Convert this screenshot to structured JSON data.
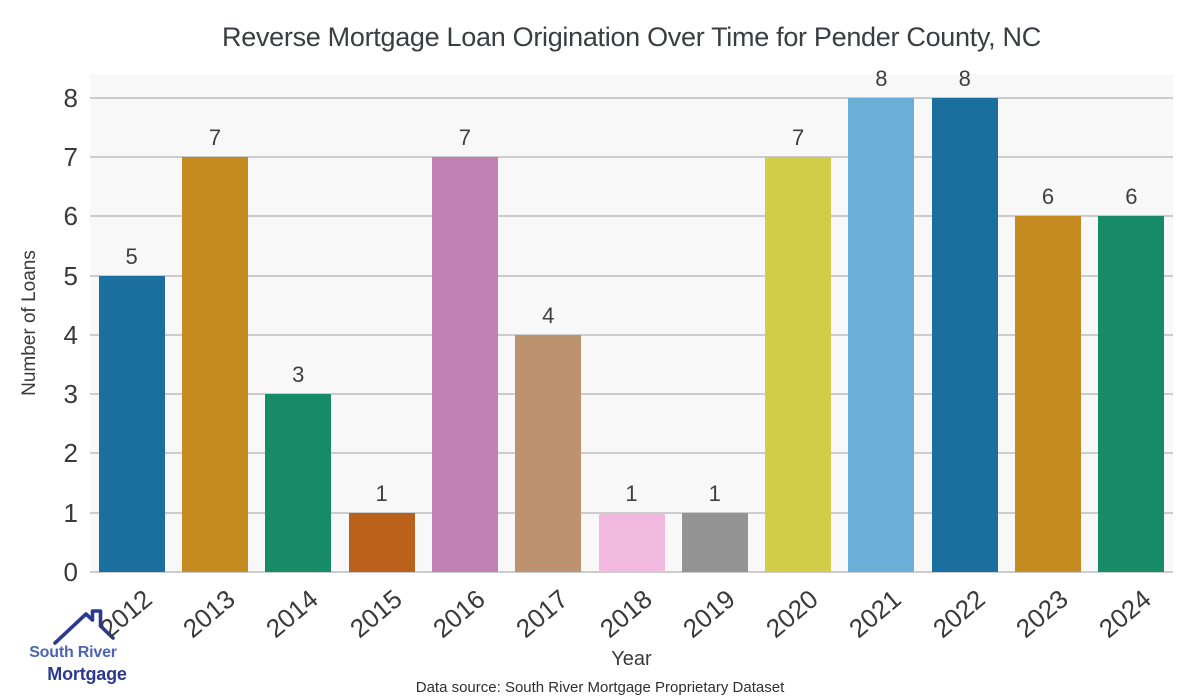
{
  "chart_data": {
    "type": "bar",
    "title": "Reverse Mortgage Loan Origination Over Time for Pender County, NC",
    "xlabel": "Year",
    "ylabel": "Number of Loans",
    "categories": [
      "2012",
      "2013",
      "2014",
      "2015",
      "2016",
      "2017",
      "2018",
      "2019",
      "2020",
      "2021",
      "2022",
      "2023",
      "2024"
    ],
    "values": [
      5,
      7,
      3,
      1,
      7,
      4,
      1,
      1,
      7,
      8,
      8,
      6,
      6
    ],
    "bar_colors": [
      "#1a6f9e",
      "#c58a20",
      "#178a68",
      "#ba611c",
      "#c281b5",
      "#bd926e",
      "#f2b9e0",
      "#949494",
      "#d3cc49",
      "#69afd7",
      "#1a6f9e",
      "#c58a20",
      "#178a68"
    ],
    "ylim": [
      0,
      8
    ],
    "yticks": [
      0,
      1,
      2,
      3,
      4,
      5,
      6,
      7,
      8
    ],
    "grid": true,
    "legend": "none",
    "plot_background": "#f8f8f8",
    "grid_color": "#cccccc"
  },
  "branding": {
    "logo_icon": "house-roof-icon",
    "logo_line1": "South River",
    "logo_line2": "Mortgage",
    "logo_color_light": "#4a66b2",
    "logo_color_dark": "#2b3a90"
  },
  "footer": {
    "source": "Data source: South River Mortgage Proprietary Dataset"
  }
}
